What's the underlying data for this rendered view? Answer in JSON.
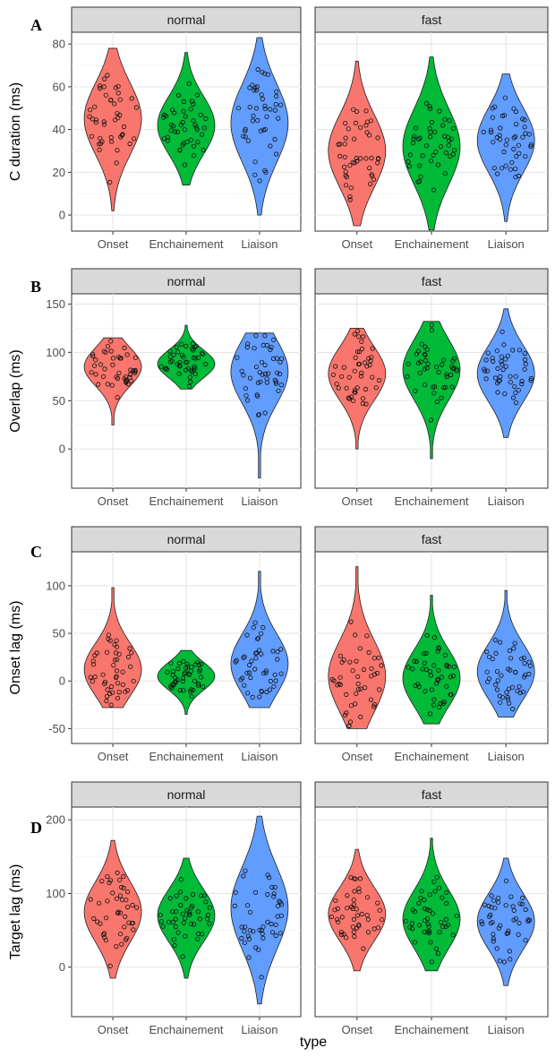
{
  "figure": {
    "x_axis_title": "type",
    "facet_labels": [
      "normal",
      "fast"
    ],
    "categories": [
      "Onset",
      "Enchainement",
      "Liaison"
    ],
    "series_colors": {
      "Onset": "#f8766d",
      "Enchainement": "#00ba38",
      "Liaison": "#619cff"
    }
  },
  "chart_data": [
    {
      "panel_letter": "A",
      "type": "violin",
      "ylabel": "C duration (ms)",
      "ylim": [
        -5,
        83
      ],
      "yticks": [
        0,
        20,
        40,
        60,
        80
      ],
      "grid": true,
      "facets": [
        {
          "facet": "normal",
          "groups": [
            {
              "category": "Onset",
              "range": [
                2,
                78
              ],
              "median": 45
            },
            {
              "category": "Enchainement",
              "range": [
                14,
                76
              ],
              "median": 42
            },
            {
              "category": "Liaison",
              "range": [
                0,
                83
              ],
              "median": 43
            }
          ]
        },
        {
          "facet": "fast",
          "groups": [
            {
              "category": "Onset",
              "range": [
                -5,
                72
              ],
              "median": 30
            },
            {
              "category": "Enchainement",
              "range": [
                -7,
                74
              ],
              "median": 32
            },
            {
              "category": "Liaison",
              "range": [
                -3,
                66
              ],
              "median": 35
            }
          ]
        }
      ]
    },
    {
      "panel_letter": "B",
      "type": "violin",
      "ylabel": "Overlap (ms)",
      "ylim": [
        -35,
        155
      ],
      "yticks": [
        0,
        50,
        100,
        150
      ],
      "grid": true,
      "facets": [
        {
          "facet": "normal",
          "groups": [
            {
              "category": "Onset",
              "range": [
                25,
                115
              ],
              "median": 85
            },
            {
              "category": "Enchainement",
              "range": [
                62,
                128
              ],
              "median": 88
            },
            {
              "category": "Liaison",
              "range": [
                -30,
                120
              ],
              "median": 80
            }
          ]
        },
        {
          "facet": "fast",
          "groups": [
            {
              "category": "Onset",
              "range": [
                0,
                125
              ],
              "median": 78
            },
            {
              "category": "Enchainement",
              "range": [
                -10,
                132
              ],
              "median": 82
            },
            {
              "category": "Liaison",
              "range": [
                12,
                145
              ],
              "median": 78
            }
          ]
        }
      ]
    },
    {
      "panel_letter": "C",
      "type": "violin",
      "ylabel": "Onset lag (ms)",
      "ylim": [
        -60,
        130
      ],
      "yticks": [
        -50,
        0,
        50,
        100
      ],
      "grid": true,
      "facets": [
        {
          "facet": "normal",
          "groups": [
            {
              "category": "Onset",
              "range": [
                -28,
                98
              ],
              "median": 12
            },
            {
              "category": "Enchainement",
              "range": [
                -35,
                32
              ],
              "median": 5
            },
            {
              "category": "Liaison",
              "range": [
                -28,
                115
              ],
              "median": 18
            }
          ]
        },
        {
          "facet": "fast",
          "groups": [
            {
              "category": "Onset",
              "range": [
                -50,
                120
              ],
              "median": 5
            },
            {
              "category": "Enchainement",
              "range": [
                -45,
                90
              ],
              "median": 3
            },
            {
              "category": "Liaison",
              "range": [
                -38,
                95
              ],
              "median": 10
            }
          ]
        }
      ]
    },
    {
      "panel_letter": "D",
      "type": "violin",
      "ylabel": "Target lag (ms)",
      "ylim": [
        -60,
        210
      ],
      "yticks": [
        0,
        100,
        200
      ],
      "grid": true,
      "facets": [
        {
          "facet": "normal",
          "groups": [
            {
              "category": "Onset",
              "range": [
                -15,
                172
              ],
              "median": 75
            },
            {
              "category": "Enchainement",
              "range": [
                -15,
                148
              ],
              "median": 70
            },
            {
              "category": "Liaison",
              "range": [
                -50,
                205
              ],
              "median": 80
            }
          ]
        },
        {
          "facet": "fast",
          "groups": [
            {
              "category": "Onset",
              "range": [
                -5,
                160
              ],
              "median": 72
            },
            {
              "category": "Enchainement",
              "range": [
                -5,
                175
              ],
              "median": 65
            },
            {
              "category": "Liaison",
              "range": [
                -25,
                148
              ],
              "median": 62
            }
          ]
        }
      ]
    }
  ]
}
